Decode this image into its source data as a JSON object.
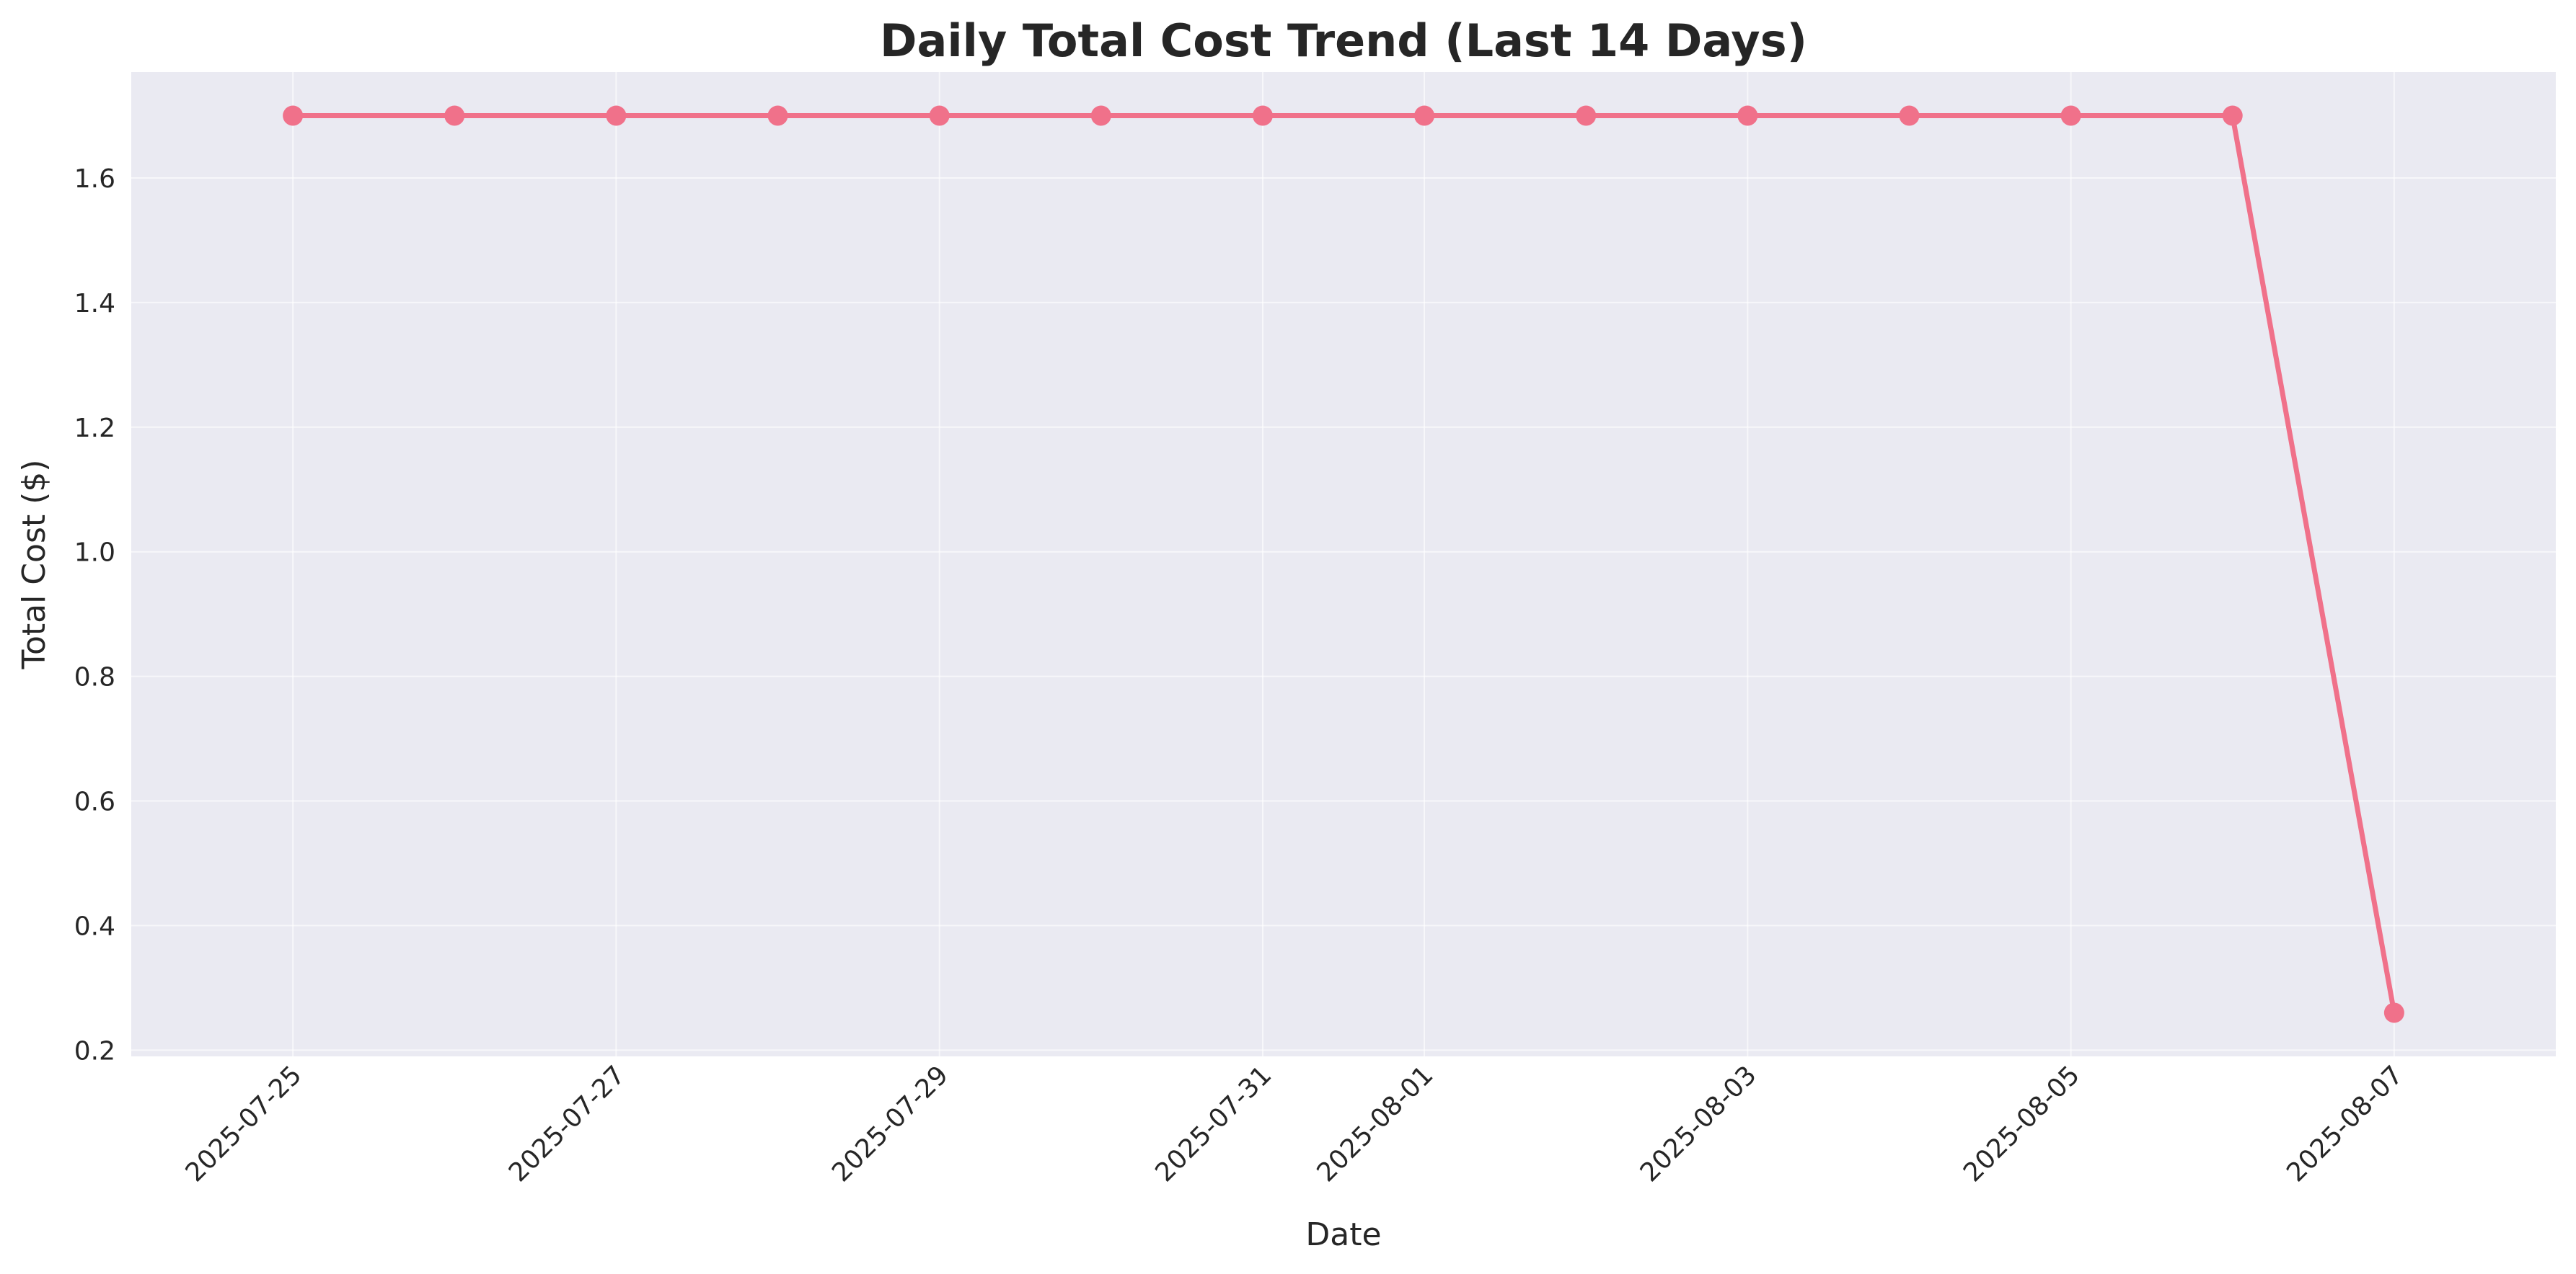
{
  "chart_data": {
    "type": "line",
    "title": "Daily Total Cost Trend (Last 14 Days)",
    "xlabel": "Date",
    "ylabel": "Total Cost ($)",
    "x": [
      "2025-07-25",
      "2025-07-26",
      "2025-07-27",
      "2025-07-28",
      "2025-07-29",
      "2025-07-30",
      "2025-07-31",
      "2025-08-01",
      "2025-08-02",
      "2025-08-03",
      "2025-08-04",
      "2025-08-05",
      "2025-08-06",
      "2025-08-07"
    ],
    "values": [
      1.7,
      1.7,
      1.7,
      1.7,
      1.7,
      1.7,
      1.7,
      1.7,
      1.7,
      1.7,
      1.7,
      1.7,
      1.7,
      0.26
    ],
    "x_tick_labels": [
      "2025-07-25",
      "2025-07-27",
      "2025-07-29",
      "2025-07-31",
      "2025-08-01",
      "2025-08-03",
      "2025-08-05",
      "2025-08-07"
    ],
    "y_ticks": [
      0.2,
      0.4,
      0.6,
      0.8,
      1.0,
      1.2,
      1.4,
      1.6
    ],
    "y_tick_labels": [
      "0.2",
      "0.4",
      "0.6",
      "0.8",
      "1.0",
      "1.2",
      "1.4",
      "1.6"
    ],
    "ylim": [
      0.19,
      1.77
    ],
    "xlim": [
      "2025-07-24",
      "2025-08-08"
    ],
    "grid": true,
    "legend": "none",
    "colors": {
      "line": "#f0718a",
      "marker": "#f0718a",
      "plot_background": "#eaeaf2",
      "grid": "#ffffff"
    }
  }
}
